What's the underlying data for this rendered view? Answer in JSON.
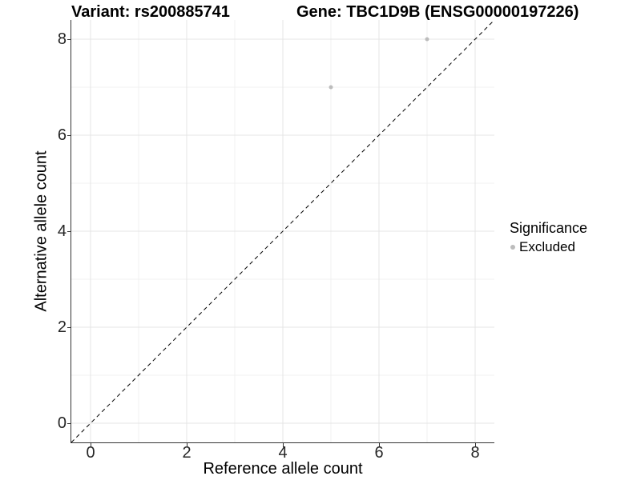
{
  "plot": {
    "title_left": "Variant: rs200885741",
    "title_right": "Gene: TBC1D9B (ENSG00000197226)"
  },
  "chart_data": {
    "type": "scatter",
    "title_left": "Variant: rs200885741",
    "title_right": "Gene: TBC1D9B (ENSG00000197226)",
    "xlabel": "Reference allele count",
    "ylabel": "Alternative allele count",
    "xlim": [
      -0.4,
      8.4
    ],
    "ylim": [
      -0.4,
      8.4
    ],
    "x_major_ticks": [
      0,
      2,
      4,
      6,
      8
    ],
    "y_major_ticks": [
      0,
      2,
      4,
      6,
      8
    ],
    "x_minor_ticks": [
      1,
      3,
      5,
      7
    ],
    "y_minor_ticks": [
      1,
      3,
      5,
      7
    ],
    "grid": "major+minor",
    "identity_line": {
      "style": "dashed",
      "slope": 1,
      "intercept": 0,
      "color": "#000000"
    },
    "series": [
      {
        "name": "Excluded",
        "color": "#bcbcbc",
        "points": [
          {
            "x": 5,
            "y": 7
          },
          {
            "x": 7,
            "y": 8
          }
        ]
      }
    ],
    "legend": {
      "title": "Significance",
      "position": "right",
      "items": [
        {
          "label": "Excluded",
          "color": "#bcbcbc"
        }
      ]
    },
    "colors": {
      "major_grid": "#e4e4e4",
      "minor_grid": "#f0f0f0",
      "axis_line": "#333333",
      "tick_text": "#262626",
      "title_text": "#000000"
    }
  }
}
